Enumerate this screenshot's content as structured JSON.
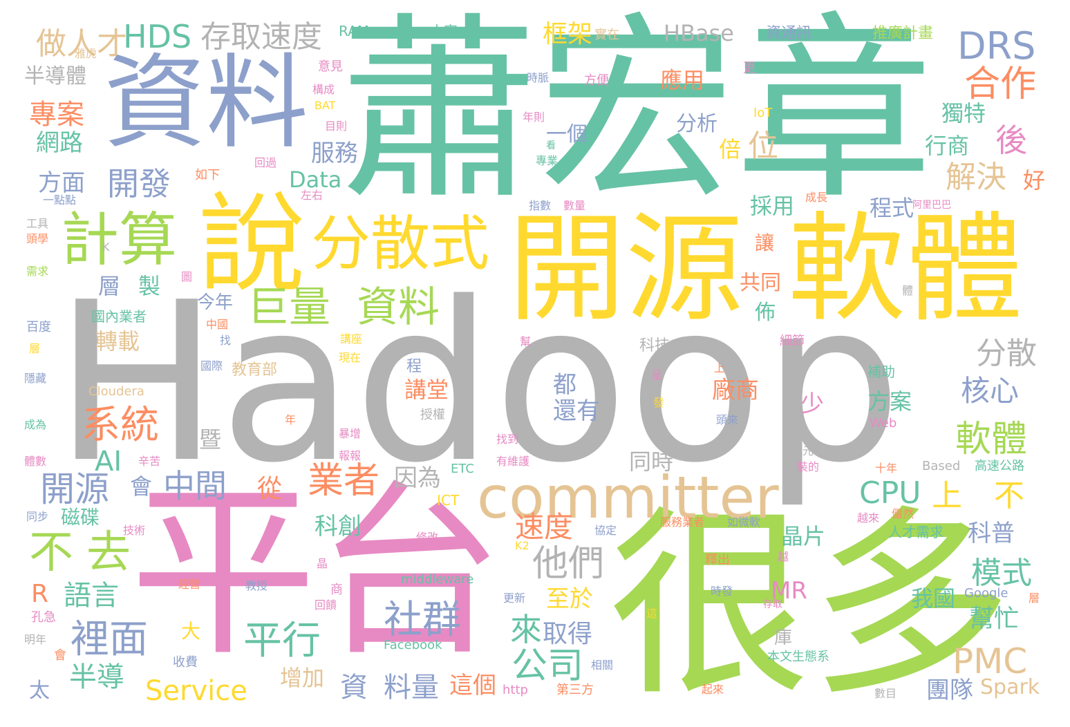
{
  "palette": {
    "green": "#66c2a5",
    "orange": "#fc8d62",
    "blue": "#8da0cb",
    "pink": "#e78ac3",
    "lime": "#a6d854",
    "yellow": "#ffd92f",
    "tan": "#e5c494",
    "gray": "#b3b3b3"
  },
  "words": [
    {
      "text": "Hadoop",
      "color": "gray"
    },
    {
      "text": "蕭宏章",
      "color": "green"
    },
    {
      "text": "資料",
      "color": "blue"
    },
    {
      "text": "平台",
      "color": "pink"
    },
    {
      "text": "很多",
      "color": "lime"
    },
    {
      "text": "開源",
      "color": "yellow"
    },
    {
      "text": "軟體",
      "color": "yellow"
    },
    {
      "text": "說",
      "color": "yellow"
    },
    {
      "text": "committer",
      "color": "tan"
    },
    {
      "text": "分散式",
      "color": "yellow"
    },
    {
      "text": "計算",
      "color": "lime"
    },
    {
      "text": "巨量",
      "color": "lime"
    },
    {
      "text": "資料",
      "color": "lime"
    },
    {
      "text": "HDS",
      "color": "green"
    },
    {
      "text": "存取速度",
      "color": "gray"
    },
    {
      "text": "DRS",
      "color": "blue"
    },
    {
      "text": "合作",
      "color": "orange"
    },
    {
      "text": "做人才",
      "color": "tan"
    },
    {
      "text": "專案",
      "color": "orange"
    },
    {
      "text": "網路",
      "color": "green"
    },
    {
      "text": "半導體",
      "color": "gray"
    },
    {
      "text": "開發",
      "color": "blue"
    },
    {
      "text": "服務",
      "color": "blue"
    },
    {
      "text": "框架",
      "color": "yellow"
    },
    {
      "text": "HBase",
      "color": "gray"
    },
    {
      "text": "應用",
      "color": "orange"
    },
    {
      "text": "一個",
      "color": "blue"
    },
    {
      "text": "分析",
      "color": "blue"
    },
    {
      "text": "位",
      "color": "tan"
    },
    {
      "text": "倍",
      "color": "yellow"
    },
    {
      "text": "後",
      "color": "pink"
    },
    {
      "text": "獨特",
      "color": "green"
    },
    {
      "text": "行商",
      "color": "green"
    },
    {
      "text": "解決",
      "color": "tan"
    },
    {
      "text": "好",
      "color": "orange"
    },
    {
      "text": "方面",
      "color": "blue"
    },
    {
      "text": "Data",
      "color": "green"
    },
    {
      "text": "採用",
      "color": "green"
    },
    {
      "text": "程式",
      "color": "blue"
    },
    {
      "text": "系統",
      "color": "orange"
    },
    {
      "text": "AI",
      "color": "green"
    },
    {
      "text": "轉載",
      "color": "tan"
    },
    {
      "text": "層",
      "color": "blue"
    },
    {
      "text": "製",
      "color": "green"
    },
    {
      "text": "今年",
      "color": "blue"
    },
    {
      "text": "國內業者",
      "color": "green"
    },
    {
      "text": "讓",
      "color": "orange"
    },
    {
      "text": "共同",
      "color": "orange"
    },
    {
      "text": "佈",
      "color": "green"
    },
    {
      "text": "分散",
      "color": "gray"
    },
    {
      "text": "核心",
      "color": "blue"
    },
    {
      "text": "軟體",
      "color": "lime"
    },
    {
      "text": "開源",
      "color": "blue"
    },
    {
      "text": "中間",
      "color": "blue"
    },
    {
      "text": "會",
      "color": "blue"
    },
    {
      "text": "從",
      "color": "orange"
    },
    {
      "text": "業者",
      "color": "orange"
    },
    {
      "text": "因為",
      "color": "gray"
    },
    {
      "text": "講堂",
      "color": "orange"
    },
    {
      "text": "廠商",
      "color": "orange"
    },
    {
      "text": "方案",
      "color": "green"
    },
    {
      "text": "都",
      "color": "blue"
    },
    {
      "text": "還有",
      "color": "blue"
    },
    {
      "text": "少",
      "color": "pink"
    },
    {
      "text": "CPU",
      "color": "green"
    },
    {
      "text": "上",
      "color": "yellow"
    },
    {
      "text": "不",
      "color": "yellow"
    },
    {
      "text": "不",
      "color": "lime"
    },
    {
      "text": "去",
      "color": "lime"
    },
    {
      "text": "他們",
      "color": "gray"
    },
    {
      "text": "速度",
      "color": "orange"
    },
    {
      "text": "科創",
      "color": "green"
    },
    {
      "text": "晶片",
      "color": "green"
    },
    {
      "text": "科普",
      "color": "blue"
    },
    {
      "text": "模式",
      "color": "green"
    },
    {
      "text": "R",
      "color": "orange"
    },
    {
      "text": "語言",
      "color": "green"
    },
    {
      "text": "裡面",
      "color": "blue"
    },
    {
      "text": "半導",
      "color": "green"
    },
    {
      "text": "平行",
      "color": "green"
    },
    {
      "text": "社群",
      "color": "blue"
    },
    {
      "text": "至於",
      "color": "yellow"
    },
    {
      "text": "MR",
      "color": "pink"
    },
    {
      "text": "我國",
      "color": "green"
    },
    {
      "text": "幫忙",
      "color": "green"
    },
    {
      "text": "來",
      "color": "green"
    },
    {
      "text": "取得",
      "color": "blue"
    },
    {
      "text": "公司",
      "color": "green"
    },
    {
      "text": "PMC",
      "color": "tan"
    },
    {
      "text": "Service",
      "color": "yellow"
    },
    {
      "text": "資",
      "color": "blue"
    },
    {
      "text": "料量",
      "color": "blue"
    },
    {
      "text": "這個",
      "color": "orange"
    },
    {
      "text": "增加",
      "color": "tan"
    },
    {
      "text": "團隊",
      "color": "blue"
    },
    {
      "text": "Spark",
      "color": "tan"
    },
    {
      "text": "大",
      "color": "yellow"
    },
    {
      "text": "庫",
      "color": "gray"
    },
    {
      "text": "同時",
      "color": "gray"
    },
    {
      "text": "暨",
      "color": "gray"
    },
    {
      "text": "太",
      "color": "blue"
    },
    {
      "text": "磁碟",
      "color": "green"
    },
    {
      "text": "RAM",
      "color": "green"
    },
    {
      "text": "大家",
      "color": "green"
    },
    {
      "text": "實在",
      "color": "tan"
    },
    {
      "text": "資通訊",
      "color": "blue"
    },
    {
      "text": "推廣計畫",
      "color": "lime"
    },
    {
      "text": "雅虎",
      "color": "tan"
    },
    {
      "text": "意見",
      "color": "pink"
    },
    {
      "text": "構成",
      "color": "pink"
    },
    {
      "text": "BAT",
      "color": "yellow"
    },
    {
      "text": "目則",
      "color": "pink"
    },
    {
      "text": "時脈",
      "color": "blue"
    },
    {
      "text": "方便",
      "color": "pink"
    },
    {
      "text": "更",
      "color": "pink"
    },
    {
      "text": "IoT",
      "color": "yellow"
    },
    {
      "text": "年則",
      "color": "pink"
    },
    {
      "text": "看",
      "color": "green"
    },
    {
      "text": "專業",
      "color": "green"
    },
    {
      "text": "回過",
      "color": "pink"
    },
    {
      "text": "如下",
      "color": "orange"
    },
    {
      "text": "左右",
      "color": "pink"
    },
    {
      "text": "一點點",
      "color": "blue"
    },
    {
      "text": "工具",
      "color": "gray"
    },
    {
      "text": "頭學",
      "color": "orange"
    },
    {
      "text": "需求",
      "color": "lime"
    },
    {
      "text": "指數",
      "color": "blue"
    },
    {
      "text": "數量",
      "color": "pink"
    },
    {
      "text": "成長",
      "color": "orange"
    },
    {
      "text": "阿里巴巴",
      "color": "pink"
    },
    {
      "text": "K",
      "color": "gray"
    },
    {
      "text": "圖",
      "color": "pink"
    },
    {
      "text": "中國",
      "color": "orange"
    },
    {
      "text": "找",
      "color": "blue"
    },
    {
      "text": "百度",
      "color": "blue"
    },
    {
      "text": "層",
      "color": "yellow"
    },
    {
      "text": "講座",
      "color": "yellow"
    },
    {
      "text": "現在",
      "color": "yellow"
    },
    {
      "text": "國際",
      "color": "blue"
    },
    {
      "text": "教育部",
      "color": "tan"
    },
    {
      "text": "程",
      "color": "blue"
    },
    {
      "text": "科技",
      "color": "gray"
    },
    {
      "text": "幫",
      "color": "pink"
    },
    {
      "text": "細節",
      "color": "pink"
    },
    {
      "text": "體",
      "color": "gray"
    },
    {
      "text": "上",
      "color": "orange"
    },
    {
      "text": "呈",
      "color": "pink"
    },
    {
      "text": "發",
      "color": "yellow"
    },
    {
      "text": "補助",
      "color": "green"
    },
    {
      "text": "隱藏",
      "color": "blue"
    },
    {
      "text": "Cloudera",
      "color": "tan"
    },
    {
      "text": "成為",
      "color": "green"
    },
    {
      "text": "年",
      "color": "orange"
    },
    {
      "text": "授權",
      "color": "gray"
    },
    {
      "text": "頭來",
      "color": "blue"
    },
    {
      "text": "Web",
      "color": "pink"
    },
    {
      "text": "暴增",
      "color": "pink"
    },
    {
      "text": "報報",
      "color": "pink"
    },
    {
      "text": "找到",
      "color": "pink"
    },
    {
      "text": "有維護",
      "color": "pink"
    },
    {
      "text": "西元",
      "color": "gray"
    },
    {
      "text": "十年",
      "color": "orange"
    },
    {
      "text": "Based",
      "color": "gray"
    },
    {
      "text": "高速公路",
      "color": "green"
    },
    {
      "text": "體數",
      "color": "pink"
    },
    {
      "text": "辛苦",
      "color": "pink"
    },
    {
      "text": "ETC",
      "color": "green"
    },
    {
      "text": "裝的",
      "color": "pink"
    },
    {
      "text": "ICT",
      "color": "yellow"
    },
    {
      "text": "同步",
      "color": "blue"
    },
    {
      "text": "技術",
      "color": "pink"
    },
    {
      "text": "服務業者",
      "color": "orange"
    },
    {
      "text": "如微軟",
      "color": "blue"
    },
    {
      "text": "越來",
      "color": "pink"
    },
    {
      "text": "儼然",
      "color": "orange"
    },
    {
      "text": "人才需求",
      "color": "green"
    },
    {
      "text": "協定",
      "color": "blue"
    },
    {
      "text": "修改",
      "color": "pink"
    },
    {
      "text": "K2",
      "color": "yellow"
    },
    {
      "text": "越",
      "color": "pink"
    },
    {
      "text": "釋出",
      "color": "orange"
    },
    {
      "text": "晶",
      "color": "pink"
    },
    {
      "text": "經營",
      "color": "orange"
    },
    {
      "text": "教授",
      "color": "blue"
    },
    {
      "text": "middleware",
      "color": "green"
    },
    {
      "text": "商",
      "color": "pink"
    },
    {
      "text": "更新",
      "color": "blue"
    },
    {
      "text": "時發",
      "color": "blue"
    },
    {
      "text": "Google",
      "color": "blue"
    },
    {
      "text": "存取",
      "color": "pink"
    },
    {
      "text": "層",
      "color": "orange"
    },
    {
      "text": "回饋",
      "color": "pink"
    },
    {
      "text": "孔急",
      "color": "pink"
    },
    {
      "text": "這",
      "color": "yellow"
    },
    {
      "text": "明年",
      "color": "gray"
    },
    {
      "text": "Facebook",
      "color": "green"
    },
    {
      "text": "會",
      "color": "orange"
    },
    {
      "text": "收費",
      "color": "blue"
    },
    {
      "text": "相關",
      "color": "blue"
    },
    {
      "text": "本文生態系",
      "color": "green"
    },
    {
      "text": "http",
      "color": "pink"
    },
    {
      "text": "第三方",
      "color": "orange"
    },
    {
      "text": "起來",
      "color": "orange"
    },
    {
      "text": "數目",
      "color": "gray"
    }
  ]
}
